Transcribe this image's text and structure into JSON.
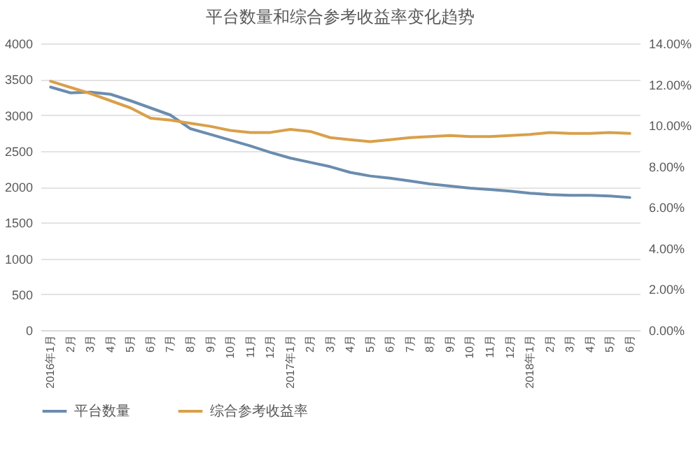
{
  "chart_data": {
    "type": "line",
    "title": "平台数量和综合参考收益率变化趋势",
    "categories": [
      "2016年1月",
      "2月",
      "3月",
      "4月",
      "5月",
      "6月",
      "7月",
      "8月",
      "9月",
      "10月",
      "11月",
      "12月",
      "2017年1月",
      "2月",
      "3月",
      "4月",
      "5月",
      "6月",
      "7月",
      "8月",
      "9月",
      "10月",
      "11月",
      "12月",
      "2018年1月",
      "2月",
      "3月",
      "4月",
      "5月",
      "6月"
    ],
    "series": [
      {
        "name": "平台数量",
        "color": "#6b8cae",
        "values": [
          3390,
          3310,
          3320,
          3290,
          3200,
          3100,
          3000,
          2810,
          2730,
          2650,
          2570,
          2480,
          2400,
          2340,
          2280,
          2200,
          2150,
          2120,
          2080,
          2040,
          2010,
          1980,
          1960,
          1940,
          1910,
          1890,
          1880,
          1880,
          1870,
          1850
        ]
      },
      {
        "name": "综合参考收益率",
        "color": "#d9a04a",
        "axis": "y2",
        "values": [
          12.15,
          11.85,
          11.55,
          11.2,
          10.85,
          10.35,
          10.25,
          10.1,
          9.95,
          9.75,
          9.65,
          9.65,
          9.8,
          9.7,
          9.4,
          9.3,
          9.2,
          9.3,
          9.4,
          9.45,
          9.5,
          9.45,
          9.45,
          9.5,
          9.55,
          9.65,
          9.6,
          9.6,
          9.65,
          9.6
        ]
      }
    ],
    "ylim": [
      0,
      4000
    ],
    "yticks": [
      0,
      500,
      1000,
      1500,
      2000,
      2500,
      3000,
      3500,
      4000
    ],
    "y2lim": [
      0,
      14
    ],
    "y2ticks": [
      {
        "value": 0,
        "label": "0.00%"
      },
      {
        "value": 2,
        "label": "2.00%"
      },
      {
        "value": 4,
        "label": "4.00%"
      },
      {
        "value": 6,
        "label": "6.00%"
      },
      {
        "value": 8,
        "label": "8.00%"
      },
      {
        "value": 10,
        "label": "10.00%"
      },
      {
        "value": 12,
        "label": "12.00%"
      },
      {
        "value": 14,
        "label": "14.00%"
      }
    ],
    "grid": "y",
    "legend": "bottom",
    "marker": "none",
    "line_style": "solid"
  }
}
